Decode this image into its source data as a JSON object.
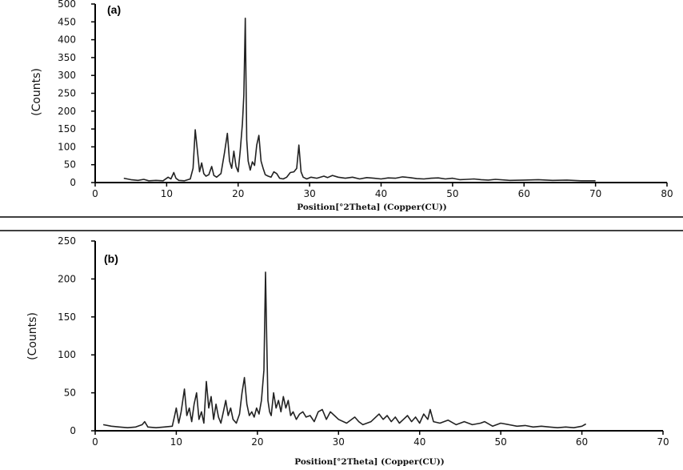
{
  "chart_data": [
    {
      "type": "line",
      "panel_label": "(a)",
      "xlabel": "Position[°2Theta] (Copper(CU))",
      "ylabel": "(Counts)",
      "xlim": [
        0,
        80
      ],
      "ylim": [
        0,
        500
      ],
      "xticks": [
        0,
        10,
        20,
        30,
        40,
        50,
        60,
        70,
        80
      ],
      "yticks": [
        0,
        50,
        100,
        150,
        200,
        250,
        300,
        350,
        400,
        450,
        500
      ],
      "grid": false,
      "series": [
        {
          "color": "#222222",
          "x": [
            4,
            5,
            6,
            6.8,
            7.5,
            8.5,
            9.5,
            10.2,
            10.6,
            11,
            11.3,
            11.7,
            12.5,
            13.3,
            13.7,
            14,
            14.3,
            14.6,
            14.9,
            15.2,
            15.5,
            15.9,
            16.3,
            16.6,
            17,
            17.6,
            18.1,
            18.5,
            18.8,
            19.1,
            19.4,
            19.7,
            20,
            20.3,
            20.6,
            20.8,
            21,
            21.2,
            21.4,
            21.7,
            22,
            22.3,
            22.6,
            22.9,
            23.2,
            23.5,
            23.8,
            24.2,
            24.6,
            25,
            25.4,
            25.8,
            26.3,
            26.8,
            27.3,
            27.8,
            28.2,
            28.5,
            28.8,
            29.1,
            29.6,
            30.2,
            31,
            32,
            32.5,
            33.2,
            34,
            35,
            36,
            37,
            38,
            39,
            40,
            41,
            42,
            43,
            44,
            45,
            46,
            47,
            48,
            49,
            50,
            51,
            52,
            53,
            54,
            55,
            56,
            58,
            60,
            62,
            64,
            66,
            68,
            70
          ],
          "y": [
            12,
            8,
            6,
            9,
            5,
            6,
            5,
            15,
            10,
            28,
            12,
            6,
            5,
            10,
            40,
            148,
            90,
            30,
            55,
            25,
            18,
            22,
            45,
            20,
            15,
            25,
            85,
            138,
            60,
            40,
            88,
            45,
            30,
            90,
            165,
            245,
            460,
            120,
            60,
            35,
            58,
            48,
            105,
            132,
            60,
            40,
            22,
            18,
            15,
            30,
            25,
            12,
            10,
            15,
            28,
            30,
            40,
            105,
            30,
            15,
            10,
            15,
            12,
            18,
            14,
            20,
            15,
            12,
            15,
            10,
            14,
            12,
            10,
            13,
            12,
            16,
            14,
            11,
            10,
            12,
            13,
            10,
            12,
            8,
            9,
            10,
            8,
            7,
            9,
            6,
            7,
            8,
            6,
            7,
            5,
            5
          ]
        }
      ]
    },
    {
      "type": "line",
      "panel_label": "(b)",
      "xlabel": "Position[°2Theta] (Copper(CU))",
      "ylabel": "(Counts)",
      "xlim": [
        0,
        70
      ],
      "ylim": [
        0,
        250
      ],
      "xticks": [
        0,
        10,
        20,
        30,
        40,
        50,
        60,
        70
      ],
      "yticks": [
        0,
        50,
        100,
        150,
        200,
        250
      ],
      "grid": false,
      "series": [
        {
          "color": "#222222",
          "x": [
            1,
            2,
            3,
            4,
            5,
            5.8,
            6.1,
            6.5,
            7.5,
            8.5,
            9.5,
            9.8,
            10,
            10.3,
            10.6,
            11,
            11.3,
            11.6,
            11.9,
            12.2,
            12.5,
            12.8,
            13.1,
            13.4,
            13.7,
            14,
            14.3,
            14.6,
            14.9,
            15.2,
            15.5,
            15.8,
            16.1,
            16.4,
            16.7,
            17,
            17.4,
            17.8,
            18.1,
            18.4,
            18.7,
            19,
            19.3,
            19.6,
            19.9,
            20.2,
            20.5,
            20.8,
            21,
            21.15,
            21.3,
            21.5,
            21.7,
            22,
            22.3,
            22.6,
            22.9,
            23.2,
            23.5,
            23.8,
            24.1,
            24.4,
            24.8,
            25.2,
            25.6,
            26,
            26.5,
            27,
            27.5,
            28,
            28.5,
            29,
            29.5,
            30,
            31,
            32,
            32.5,
            33,
            34,
            35,
            35.5,
            36,
            36.5,
            37,
            37.5,
            38,
            38.5,
            39,
            39.5,
            40,
            40.5,
            41,
            41.3,
            41.7,
            42.5,
            43.5,
            44.5,
            45.5,
            46.5,
            47.5,
            48,
            49,
            50,
            51,
            52,
            53,
            54,
            55,
            56,
            57,
            58,
            59,
            60,
            60.5
          ],
          "y": [
            8,
            6,
            5,
            4,
            5,
            8,
            12,
            5,
            4,
            5,
            6,
            20,
            30,
            10,
            25,
            55,
            20,
            30,
            12,
            35,
            50,
            15,
            25,
            10,
            65,
            30,
            45,
            15,
            35,
            18,
            10,
            25,
            40,
            20,
            30,
            15,
            10,
            22,
            50,
            70,
            35,
            20,
            25,
            18,
            30,
            22,
            40,
            80,
            209,
            120,
            40,
            25,
            20,
            50,
            30,
            40,
            25,
            45,
            30,
            40,
            20,
            25,
            15,
            22,
            25,
            18,
            20,
            12,
            25,
            28,
            15,
            25,
            20,
            15,
            10,
            18,
            12,
            8,
            12,
            22,
            15,
            20,
            12,
            18,
            10,
            15,
            20,
            12,
            18,
            10,
            22,
            15,
            28,
            12,
            10,
            14,
            8,
            12,
            8,
            10,
            12,
            6,
            10,
            8,
            6,
            7,
            5,
            6,
            5,
            4,
            5,
            4,
            6,
            9
          ]
        }
      ]
    }
  ]
}
